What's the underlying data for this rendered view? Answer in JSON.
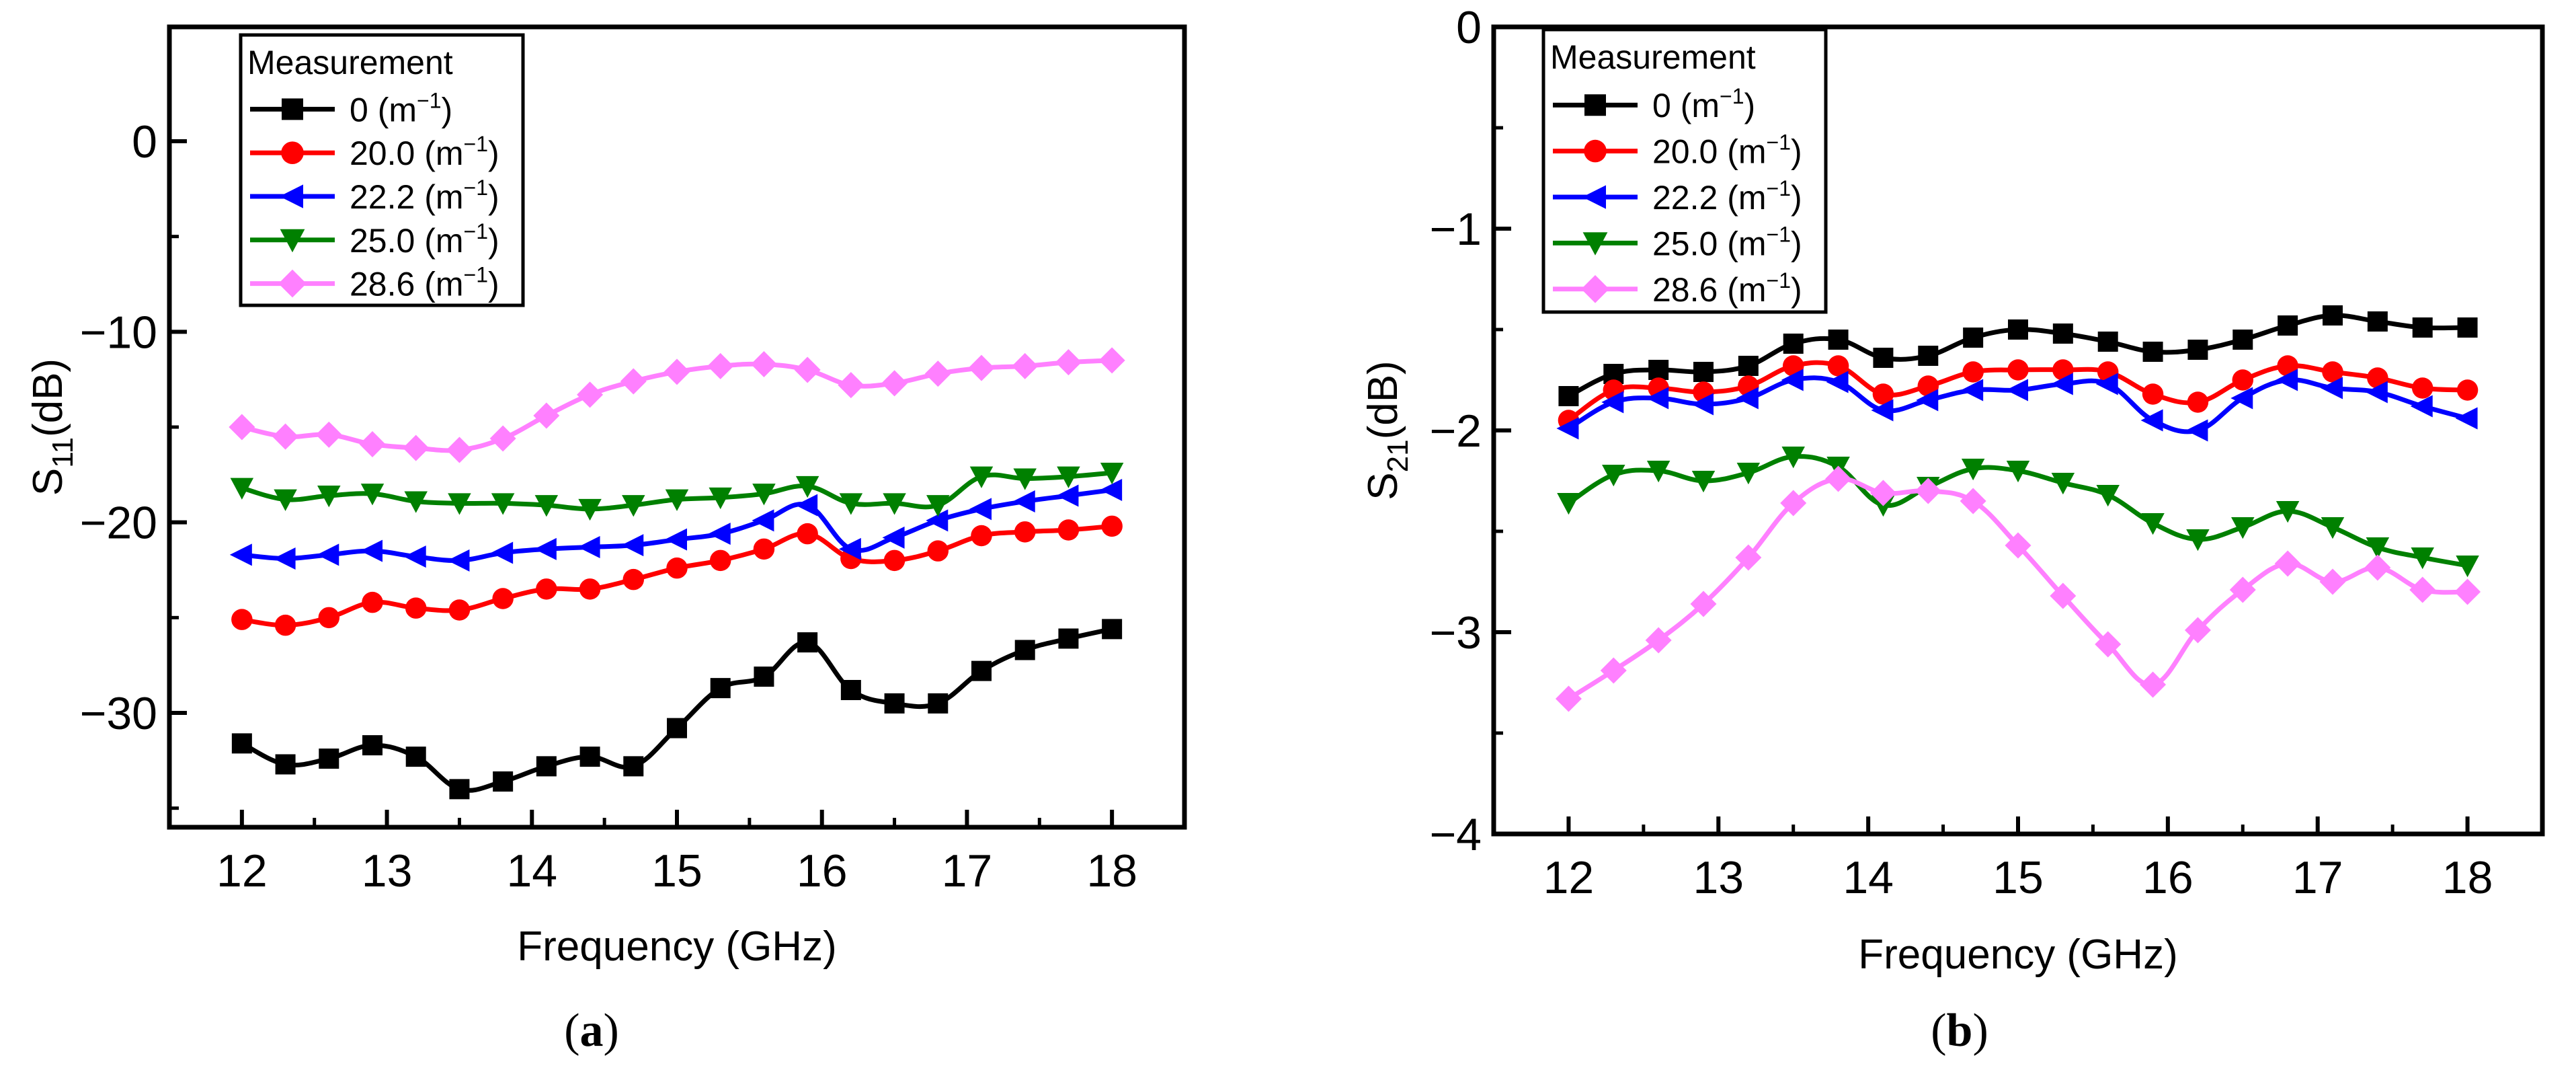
{
  "chart_data": [
    {
      "type": "line",
      "panel": "a",
      "caption_letter": "a",
      "xlabel": "Frequency (GHz)",
      "ylabel": "S11(dB)",
      "ylabel_parts": {
        "main": "S",
        "sub": "11",
        "unit": "(dB)"
      },
      "xlim": [
        11.5,
        18.5
      ],
      "ylim": [
        -36,
        6
      ],
      "xticks": [
        12,
        13,
        14,
        15,
        16,
        17,
        18
      ],
      "yticks": [
        0,
        -10,
        -20,
        -30
      ],
      "ytick_labels": [
        "0",
        "−10",
        "−20",
        "−30"
      ],
      "legend_title": "Measurement",
      "legend_location": "top-left",
      "x": [
        12.0,
        12.3,
        12.6,
        12.9,
        13.2,
        13.5,
        13.8,
        14.1,
        14.4,
        14.7,
        15.0,
        15.3,
        15.6,
        15.9,
        16.2,
        16.5,
        16.8,
        17.1,
        17.4,
        17.7,
        18.0
      ],
      "series": [
        {
          "name": "0",
          "unit": "m",
          "exp": "−1",
          "color": "#000000",
          "marker": "square",
          "values": [
            -31.6,
            -32.7,
            -32.4,
            -31.7,
            -32.3,
            -34.0,
            -33.6,
            -32.8,
            -32.3,
            -32.8,
            -30.8,
            -28.7,
            -28.1,
            -26.3,
            -28.8,
            -29.5,
            -29.5,
            -27.8,
            -26.7,
            -26.1,
            -25.6
          ]
        },
        {
          "name": "20.0",
          "unit": "m",
          "exp": "−1",
          "color": "#ff0000",
          "marker": "circle",
          "values": [
            -25.1,
            -25.4,
            -25.0,
            -24.2,
            -24.5,
            -24.6,
            -24.0,
            -23.5,
            -23.5,
            -23.0,
            -22.4,
            -22.0,
            -21.4,
            -20.6,
            -21.9,
            -22.0,
            -21.5,
            -20.7,
            -20.5,
            -20.4,
            -20.2
          ]
        },
        {
          "name": "22.2",
          "unit": "m",
          "exp": "−1",
          "color": "#0000ff",
          "marker": "triangle-left",
          "values": [
            -21.7,
            -21.9,
            -21.7,
            -21.5,
            -21.8,
            -22.0,
            -21.6,
            -21.4,
            -21.3,
            -21.2,
            -20.9,
            -20.6,
            -19.9,
            -19.1,
            -21.4,
            -20.8,
            -19.9,
            -19.3,
            -18.9,
            -18.6,
            -18.3
          ]
        },
        {
          "name": "25.0",
          "unit": "m",
          "exp": "−1",
          "color": "#008000",
          "marker": "triangle-down",
          "values": [
            -18.2,
            -18.8,
            -18.6,
            -18.5,
            -18.9,
            -19.0,
            -19.0,
            -19.1,
            -19.3,
            -19.1,
            -18.8,
            -18.7,
            -18.5,
            -18.1,
            -19.0,
            -19.0,
            -19.1,
            -17.6,
            -17.7,
            -17.6,
            -17.4
          ]
        },
        {
          "name": "28.6",
          "unit": "m",
          "exp": "−1",
          "color": "#ff80ff",
          "marker": "diamond",
          "values": [
            -15.0,
            -15.5,
            -15.4,
            -15.9,
            -16.1,
            -16.2,
            -15.6,
            -14.4,
            -13.3,
            -12.6,
            -12.1,
            -11.8,
            -11.7,
            -12.0,
            -12.8,
            -12.7,
            -12.2,
            -11.9,
            -11.8,
            -11.6,
            -11.5
          ]
        }
      ]
    },
    {
      "type": "line",
      "panel": "b",
      "caption_letter": "b",
      "xlabel": "Frequency (GHz)",
      "ylabel": "S21(dB)",
      "ylabel_parts": {
        "main": "S",
        "sub": "21",
        "unit": "(dB)"
      },
      "xlim": [
        11.5,
        18.5
      ],
      "ylim": [
        -4,
        0
      ],
      "xticks": [
        12,
        13,
        14,
        15,
        16,
        17,
        18
      ],
      "yticks": [
        0,
        -1,
        -2,
        -3,
        -4
      ],
      "ytick_labels": [
        "0",
        "−1",
        "−2",
        "−3",
        "−4"
      ],
      "legend_title": "Measurement",
      "legend_location": "top-left",
      "x": [
        12.0,
        12.3,
        12.6,
        12.9,
        13.2,
        13.5,
        13.8,
        14.1,
        14.4,
        14.7,
        15.0,
        15.3,
        15.6,
        15.9,
        16.2,
        16.5,
        16.8,
        17.1,
        17.4,
        17.7,
        18.0
      ],
      "series": [
        {
          "name": "0",
          "unit": "m",
          "exp": "−1",
          "color": "#000000",
          "marker": "square",
          "values": [
            -1.83,
            -1.72,
            -1.7,
            -1.71,
            -1.68,
            -1.57,
            -1.55,
            -1.64,
            -1.63,
            -1.54,
            -1.5,
            -1.52,
            -1.56,
            -1.61,
            -1.6,
            -1.55,
            -1.48,
            -1.43,
            -1.46,
            -1.49,
            -1.49
          ]
        },
        {
          "name": "20.0",
          "unit": "m",
          "exp": "−1",
          "color": "#ff0000",
          "marker": "circle",
          "values": [
            -1.95,
            -1.8,
            -1.79,
            -1.81,
            -1.78,
            -1.68,
            -1.68,
            -1.82,
            -1.78,
            -1.71,
            -1.7,
            -1.7,
            -1.71,
            -1.82,
            -1.86,
            -1.75,
            -1.68,
            -1.71,
            -1.74,
            -1.79,
            -1.8
          ]
        },
        {
          "name": "22.2",
          "unit": "m",
          "exp": "−1",
          "color": "#0000ff",
          "marker": "triangle-left",
          "values": [
            -1.99,
            -1.86,
            -1.84,
            -1.87,
            -1.84,
            -1.75,
            -1.76,
            -1.9,
            -1.85,
            -1.8,
            -1.8,
            -1.77,
            -1.77,
            -1.95,
            -2.0,
            -1.84,
            -1.75,
            -1.79,
            -1.81,
            -1.88,
            -1.94
          ]
        },
        {
          "name": "25.0",
          "unit": "m",
          "exp": "−1",
          "color": "#008000",
          "marker": "triangle-down",
          "values": [
            -2.36,
            -2.22,
            -2.2,
            -2.25,
            -2.21,
            -2.13,
            -2.18,
            -2.37,
            -2.28,
            -2.19,
            -2.2,
            -2.26,
            -2.32,
            -2.46,
            -2.54,
            -2.48,
            -2.4,
            -2.48,
            -2.58,
            -2.63,
            -2.67
          ]
        },
        {
          "name": "28.6",
          "unit": "m",
          "exp": "−1",
          "color": "#ff80ff",
          "marker": "diamond",
          "values": [
            -3.33,
            -3.19,
            -3.04,
            -2.86,
            -2.63,
            -2.36,
            -2.24,
            -2.31,
            -2.3,
            -2.35,
            -2.57,
            -2.82,
            -3.06,
            -3.26,
            -2.99,
            -2.79,
            -2.66,
            -2.75,
            -2.68,
            -2.79,
            -2.8
          ]
        }
      ]
    }
  ]
}
